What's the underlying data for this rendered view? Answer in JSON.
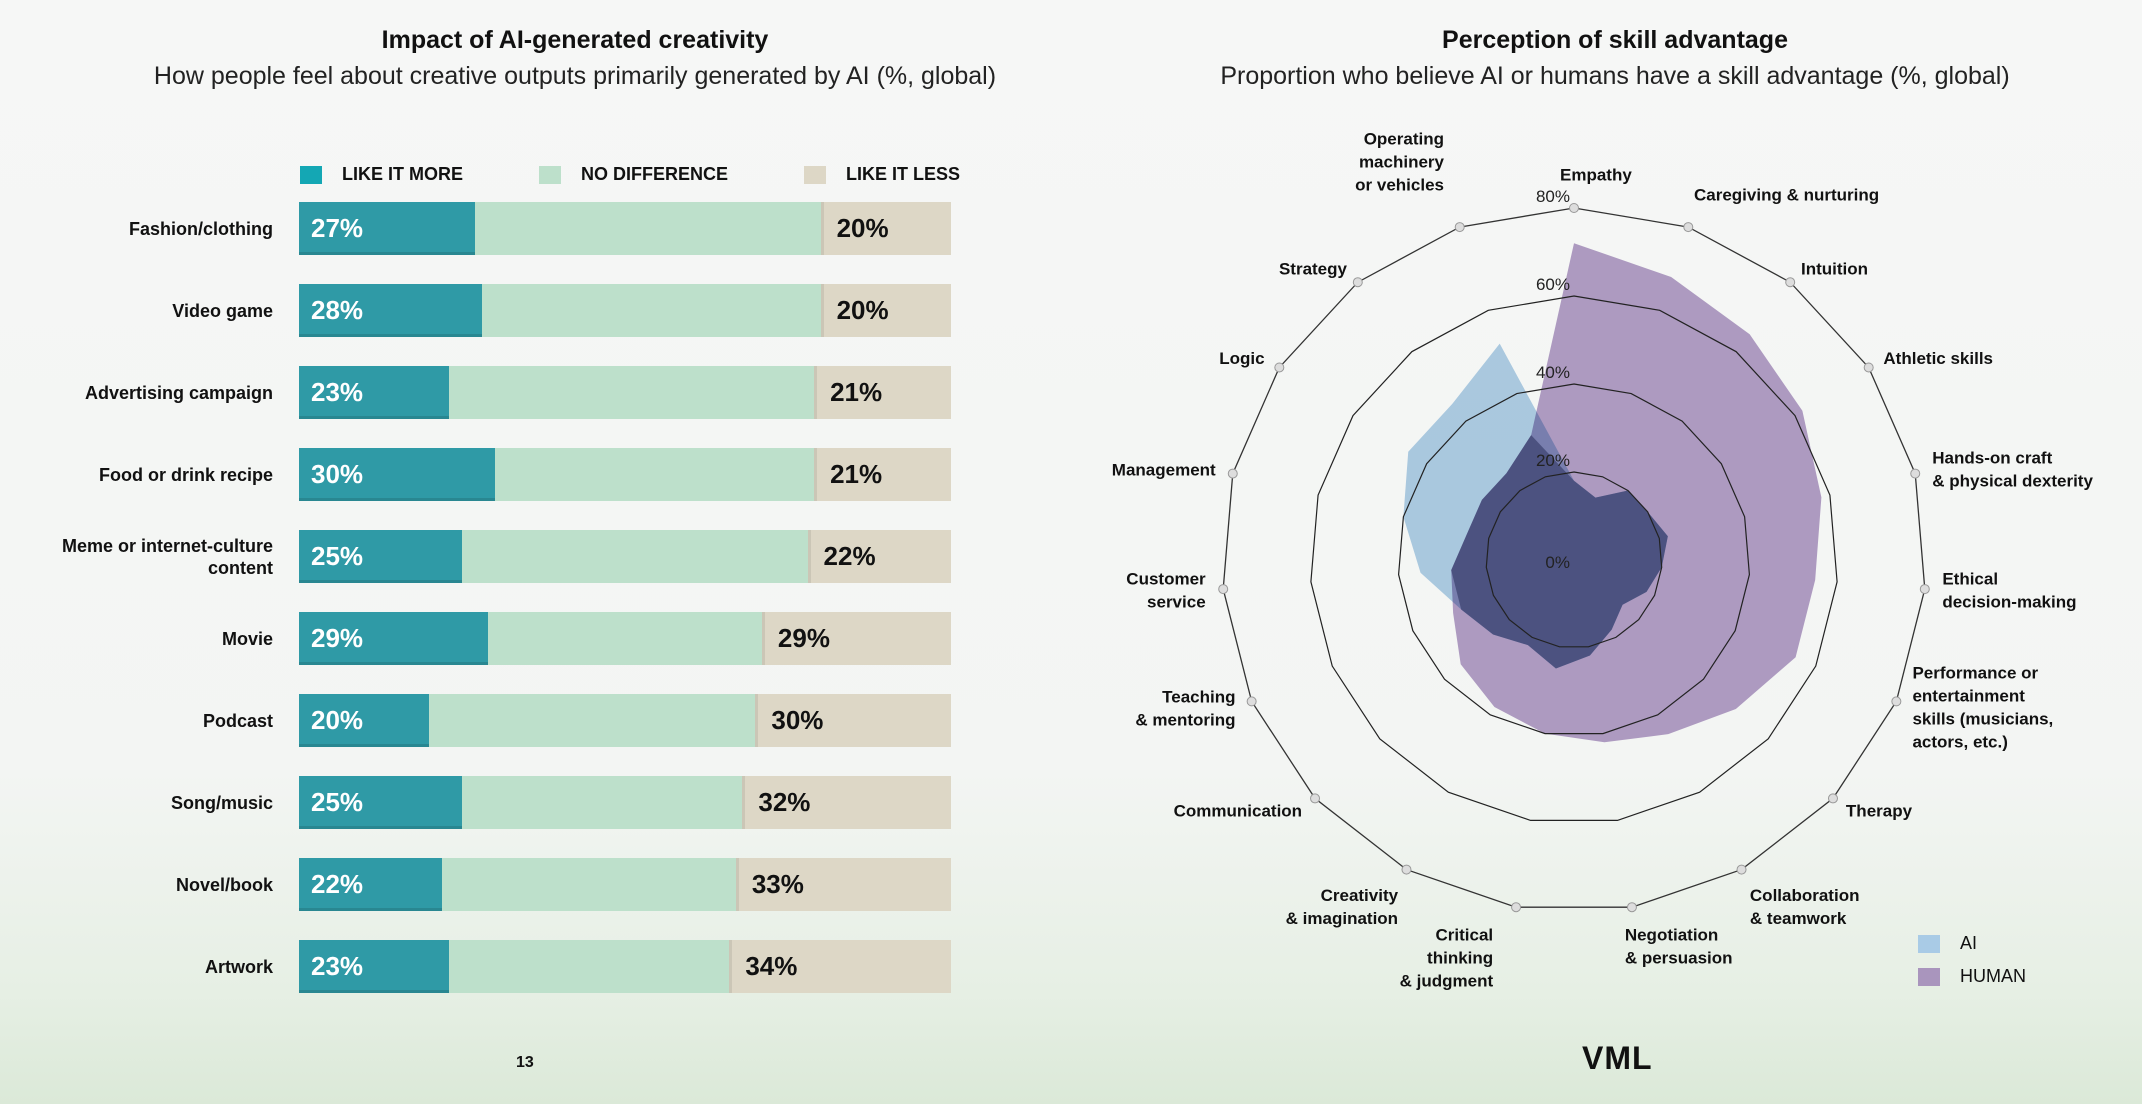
{
  "page_number": "13",
  "logo": "VML",
  "chart_data": [
    {
      "type": "bar",
      "stacked": true,
      "orientation": "horizontal",
      "title": "Impact of AI-generated creativity",
      "subtitle": "How people feel about creative outputs primarily generated by AI (%, global)",
      "legend": [
        "LIKE IT MORE",
        "NO DIFFERENCE",
        "LIKE IT LESS"
      ],
      "legend_placement": "top",
      "colors": {
        "more": "#2f9aa6",
        "nodiff": "#bde0cb",
        "less": "#ddd7c6",
        "legend_more": "#14a7b4"
      },
      "categories": [
        "Fashion/clothing",
        "Video game",
        "Advertising campaign",
        "Food or drink recipe",
        "Meme or internet-culture content",
        "Movie",
        "Podcast",
        "Song/music",
        "Novel/book",
        "Artwork"
      ],
      "series": [
        {
          "name": "LIKE IT MORE",
          "values": [
            27,
            28,
            23,
            30,
            25,
            29,
            20,
            25,
            22,
            23
          ]
        },
        {
          "name": "NO DIFFERENCE",
          "values": [
            53,
            52,
            56,
            49,
            53,
            42,
            50,
            43,
            45,
            43
          ]
        },
        {
          "name": "LIKE IT LESS",
          "values": [
            20,
            20,
            21,
            21,
            22,
            29,
            30,
            32,
            33,
            34
          ]
        }
      ],
      "xlim": [
        0,
        100
      ]
    },
    {
      "type": "radar",
      "title": "Perception of skill advantage",
      "subtitle": "Proportion who believe AI or humans have a skill advantage (%, global)",
      "axes": [
        "Empathy",
        "Caregiving & nurturing",
        "Intuition",
        "Athletic skills",
        "Hands-on craft & physical dexterity",
        "Ethical decision-making",
        "Performance or entertainment skills (musicians, actors, etc.)",
        "Therapy",
        "Collaboration & teamwork",
        "Negotiation & persuasion",
        "Critical thinking & judgment",
        "Creativity & imagination",
        "Communication",
        "Teaching & mentoring",
        "Customer service",
        "Management",
        "Logic",
        "Strategy",
        "Operating machinery or vehicles"
      ],
      "ticks": [
        "0%",
        "20%",
        "40%",
        "60%",
        "80%"
      ],
      "rlim": [
        0,
        80
      ],
      "legend_placement": "bottom-right",
      "series": [
        {
          "name": "AI",
          "color": "#a9cbe6",
          "values": [
            18,
            15,
            20,
            20,
            22,
            20,
            18,
            15,
            18,
            22,
            25,
            22,
            25,
            28,
            35,
            40,
            45,
            45,
            52
          ]
        },
        {
          "name": "HUMAN",
          "color": "#a995bd",
          "values": [
            72,
            68,
            65,
            62,
            58,
            55,
            55,
            50,
            45,
            42,
            40,
            38,
            35,
            30,
            28,
            25,
            25,
            25,
            30
          ]
        }
      ]
    }
  ]
}
